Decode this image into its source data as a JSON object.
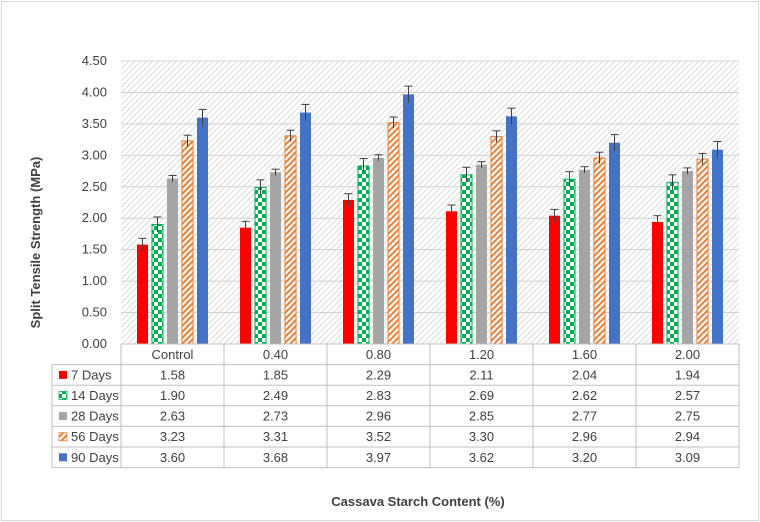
{
  "chart_data": {
    "type": "bar",
    "title": "",
    "xlabel": "Cassava Starch Content (%)",
    "ylabel": "Split Tensile Strength (MPa)",
    "ylim": [
      0,
      4.5
    ],
    "yticks": [
      "0.00",
      "0.50",
      "1.00",
      "1.50",
      "2.00",
      "2.50",
      "3.00",
      "3.50",
      "4.00",
      "4.50"
    ],
    "categories": [
      "Control",
      "0.40",
      "0.80",
      "1.20",
      "1.60",
      "2.00"
    ],
    "grid": true,
    "legend": "data-table",
    "series": [
      {
        "name": "7 Days",
        "color": "#ff0000",
        "pattern": "solid",
        "values": [
          1.58,
          1.85,
          2.29,
          2.11,
          2.04,
          1.94
        ],
        "labels": [
          "1.58",
          "1.85",
          "2.29",
          "2.11",
          "2.04",
          "1.94"
        ],
        "error": [
          0.1,
          0.1,
          0.1,
          0.1,
          0.1,
          0.1
        ]
      },
      {
        "name": "14 Days",
        "color": "#00b050",
        "pattern": "checker",
        "values": [
          1.9,
          2.49,
          2.83,
          2.69,
          2.62,
          2.57
        ],
        "labels": [
          "1.90",
          "2.49",
          "2.83",
          "2.69",
          "2.62",
          "2.57"
        ],
        "error": [
          0.12,
          0.12,
          0.12,
          0.12,
          0.12,
          0.12
        ]
      },
      {
        "name": "28 Days",
        "color": "#a5a5a5",
        "pattern": "solid",
        "values": [
          2.63,
          2.73,
          2.96,
          2.85,
          2.77,
          2.75
        ],
        "labels": [
          "2.63",
          "2.73",
          "2.96",
          "2.85",
          "2.77",
          "2.75"
        ],
        "error": [
          0.05,
          0.05,
          0.05,
          0.05,
          0.05,
          0.05
        ]
      },
      {
        "name": "56 Days",
        "color": "#ed7d31",
        "pattern": "diagonal",
        "values": [
          3.23,
          3.31,
          3.52,
          3.3,
          2.96,
          2.94
        ],
        "labels": [
          "3.23",
          "3.31",
          "3.52",
          "3.30",
          "2.96",
          "2.94"
        ],
        "error": [
          0.09,
          0.09,
          0.09,
          0.09,
          0.09,
          0.09
        ]
      },
      {
        "name": "90 Days",
        "color": "#4472c4",
        "pattern": "solid",
        "values": [
          3.6,
          3.68,
          3.97,
          3.62,
          3.2,
          3.09
        ],
        "labels": [
          "3.60",
          "3.68",
          "3.97",
          "3.62",
          "3.20",
          "3.09"
        ],
        "error": [
          0.13,
          0.13,
          0.13,
          0.13,
          0.13,
          0.13
        ]
      }
    ]
  }
}
